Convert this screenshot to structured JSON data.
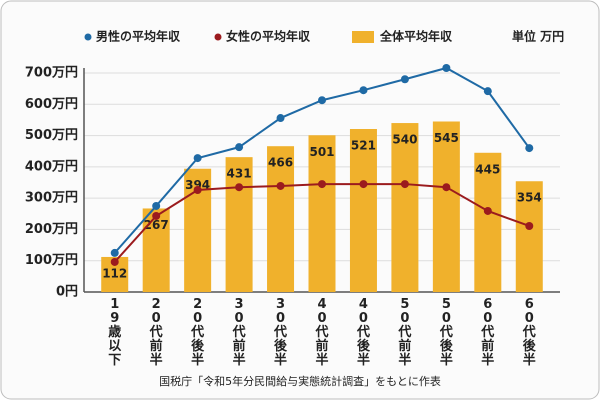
{
  "chart_data": {
    "type": "bar_line",
    "unit": "単位 万円",
    "source": "国税庁「令和5年分民間給与実態統計調査」をもとに作表",
    "categories": [
      "19歳以下",
      "20代前半",
      "20代後半",
      "30代前半",
      "30代後半",
      "40代前半",
      "40代後半",
      "50代前半",
      "50代後半",
      "60代前半",
      "60代後半"
    ],
    "series": [
      {
        "name": "男性の平均年収",
        "type": "line",
        "color": "#1f6aa5",
        "values": [
          125,
          275,
          428,
          463,
          556,
          613,
          645,
          680,
          716,
          642,
          460
        ]
      },
      {
        "name": "女性の平均年収",
        "type": "line",
        "color": "#9b1b1e",
        "values": [
          96,
          243,
          326,
          335,
          339,
          345,
          345,
          345,
          335,
          259,
          211
        ]
      },
      {
        "name": "全体平均年収",
        "type": "bar",
        "color": "#f0b12c",
        "values": [
          112,
          267,
          394,
          431,
          466,
          501,
          521,
          540,
          545,
          445,
          354
        ]
      }
    ],
    "ylim": [
      0,
      700
    ],
    "yticks": [
      {
        "value": 0,
        "label": "0円"
      },
      {
        "value": 100,
        "label": "100万円"
      },
      {
        "value": 200,
        "label": "200万円"
      },
      {
        "value": 300,
        "label": "300万円"
      },
      {
        "value": 400,
        "label": "400万円"
      },
      {
        "value": 500,
        "label": "500万円"
      },
      {
        "value": 600,
        "label": "600万円"
      },
      {
        "value": 700,
        "label": "700万円"
      }
    ],
    "grid": true
  }
}
